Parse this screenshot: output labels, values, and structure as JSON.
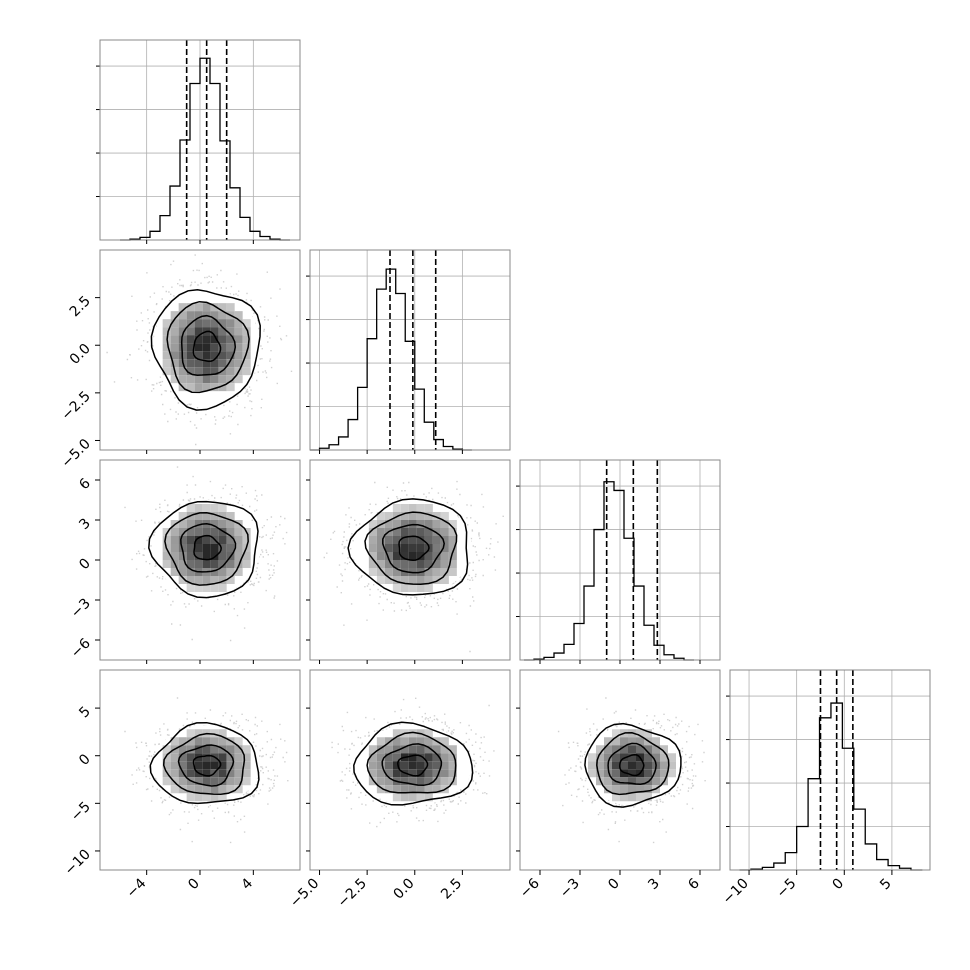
{
  "chart_data": {
    "type": "corner",
    "title": "",
    "grid": true,
    "n_params": 4,
    "axes": [
      {
        "range": [
          -7.5,
          7.5
        ],
        "ticks": [
          -4,
          0,
          4
        ],
        "tick_labels": [
          "−4",
          "0",
          "4"
        ]
      },
      {
        "range": [
          -5.5,
          5.0
        ],
        "ticks": [
          -5.0,
          -2.5,
          0.0,
          2.5
        ],
        "tick_labels": [
          "−5.0",
          "−2.5",
          "0.0",
          "2.5"
        ]
      },
      {
        "range": [
          -7.5,
          7.5
        ],
        "ticks": [
          -6,
          -3,
          0,
          3,
          6
        ],
        "tick_labels": [
          "−6",
          "−3",
          "0",
          "3",
          "6"
        ]
      },
      {
        "range": [
          -12,
          9
        ],
        "ticks": [
          -10,
          -5,
          0,
          5
        ],
        "tick_labels": [
          "−10",
          "−5",
          "0",
          "5"
        ]
      }
    ],
    "histograms": [
      {
        "param": 0,
        "edges_start": -6,
        "bin_width": 0.75,
        "counts": [
          0,
          1,
          3,
          10,
          28,
          62,
          115,
          180,
          209,
          180,
          114,
          60,
          26,
          10,
          4,
          1,
          0
        ],
        "ymax": 230,
        "quantiles": [
          -1.0,
          0.5,
          2.0
        ]
      },
      {
        "param": 1,
        "edges_start": -5.5,
        "bin_width": 0.5,
        "counts": [
          0,
          2,
          6,
          15,
          35,
          72,
          128,
          185,
          208,
          180,
          125,
          70,
          32,
          12,
          4,
          1,
          0
        ],
        "ymax": 230,
        "quantiles": [
          -1.3,
          -0.1,
          1.1
        ]
      },
      {
        "param": 2,
        "edges_start": -7.2,
        "bin_width": 0.75,
        "counts": [
          0,
          1,
          3,
          8,
          18,
          42,
          85,
          150,
          205,
          195,
          140,
          85,
          40,
          17,
          6,
          2,
          0
        ],
        "ymax": 230,
        "quantiles": [
          -1.0,
          1.0,
          2.8
        ]
      },
      {
        "param": 3,
        "edges_start": -11,
        "bin_width": 1.2,
        "counts": [
          0,
          1,
          3,
          8,
          20,
          50,
          105,
          175,
          192,
          140,
          70,
          30,
          12,
          5,
          2,
          0
        ],
        "ymax": 230,
        "quantiles": [
          -2.5,
          -0.8,
          0.9
        ]
      }
    ],
    "pairs": [
      {
        "x_param": 0,
        "y_param": 1,
        "center": [
          0.5,
          -0.1
        ],
        "sx": 2.0,
        "sy": 1.55,
        "rho": 0.0
      },
      {
        "x_param": 0,
        "y_param": 2,
        "center": [
          0.5,
          0.9
        ],
        "sx": 2.0,
        "sy": 1.8,
        "rho": 0.0
      },
      {
        "x_param": 1,
        "y_param": 2,
        "center": [
          -0.1,
          0.9
        ],
        "sx": 1.55,
        "sy": 1.8,
        "rho": 0.0
      },
      {
        "x_param": 0,
        "y_param": 3,
        "center": [
          0.5,
          -1.0
        ],
        "sx": 2.0,
        "sy": 2.1,
        "rho": 0.0
      },
      {
        "x_param": 1,
        "y_param": 3,
        "center": [
          -0.1,
          -1.0
        ],
        "sx": 1.55,
        "sy": 2.1,
        "rho": 0.0
      },
      {
        "x_param": 2,
        "y_param": 3,
        "center": [
          0.9,
          -1.0
        ],
        "sx": 1.8,
        "sy": 2.1,
        "rho": 0.0
      }
    ],
    "contour_levels_sigma": [
      0.5,
      1.0,
      1.5,
      2.0
    ]
  }
}
